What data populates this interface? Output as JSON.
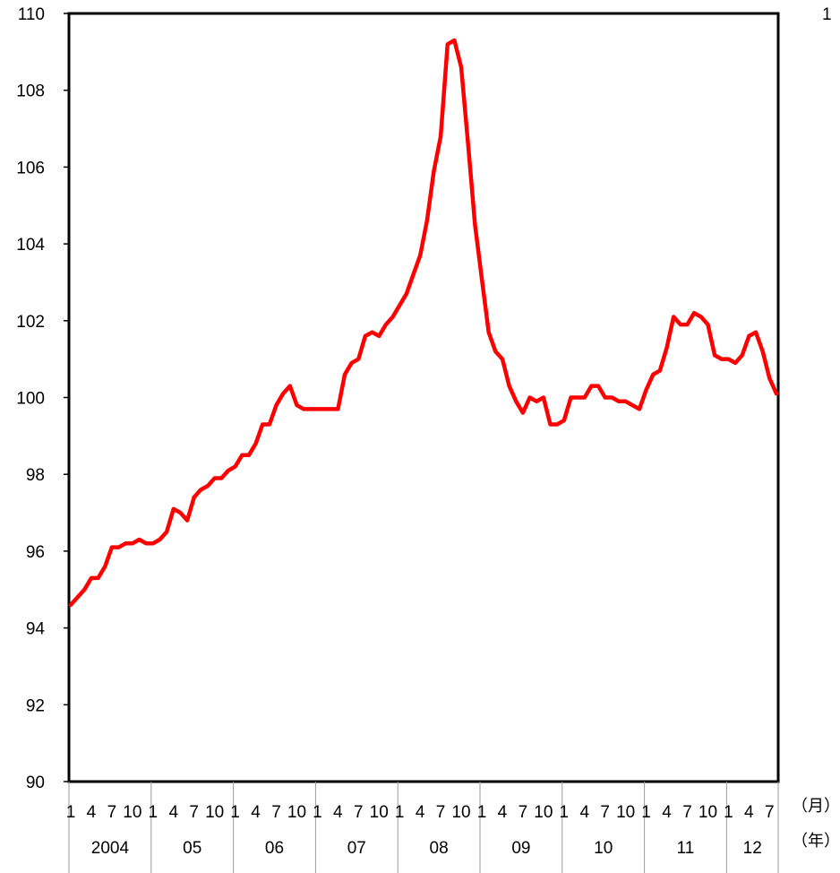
{
  "corner_text": "1",
  "chart_data": {
    "type": "line",
    "title": "",
    "xlabel": "",
    "ylabel": "",
    "ylim": [
      90,
      110
    ],
    "yticks": [
      90,
      92,
      94,
      96,
      98,
      100,
      102,
      104,
      106,
      108,
      110
    ],
    "grid": false,
    "month_unit_label": "（月）",
    "year_unit_label": "（年）",
    "month_tick_labels": [
      "1",
      "4",
      "7",
      "10"
    ],
    "last_year_month_tick_labels": [
      "1",
      "4",
      "7"
    ],
    "year_labels": [
      "2004",
      "05",
      "06",
      "07",
      "08",
      "09",
      "10",
      "11",
      "12"
    ],
    "start": "2004-01",
    "end": "2012-08",
    "series": [
      {
        "color": "#ff0000",
        "values": [
          94.6,
          94.8,
          95.0,
          95.3,
          95.3,
          95.6,
          96.1,
          96.1,
          96.2,
          96.2,
          96.3,
          96.2,
          96.2,
          96.3,
          96.5,
          97.1,
          97.0,
          96.8,
          97.4,
          97.6,
          97.7,
          97.9,
          97.9,
          98.1,
          98.2,
          98.5,
          98.5,
          98.8,
          99.3,
          99.3,
          99.8,
          100.1,
          100.3,
          99.8,
          99.7,
          99.7,
          99.7,
          99.7,
          99.7,
          99.7,
          100.6,
          100.9,
          101.0,
          101.6,
          101.7,
          101.6,
          101.9,
          102.1,
          102.4,
          102.7,
          103.2,
          103.7,
          104.6,
          105.9,
          106.8,
          109.2,
          109.3,
          108.6,
          106.6,
          104.5,
          103.1,
          101.7,
          101.2,
          101.0,
          100.3,
          99.9,
          99.6,
          100.0,
          99.9,
          100.0,
          99.3,
          99.3,
          99.4,
          100.0,
          100.0,
          100.0,
          100.3,
          100.3,
          100.0,
          100.0,
          99.9,
          99.9,
          99.8,
          99.7,
          100.2,
          100.6,
          100.7,
          101.3,
          102.1,
          101.9,
          101.9,
          102.2,
          102.1,
          101.9,
          101.1,
          101.0,
          101.0,
          100.9,
          101.1,
          101.6,
          101.7,
          101.2,
          100.5,
          100.1
        ]
      }
    ]
  }
}
